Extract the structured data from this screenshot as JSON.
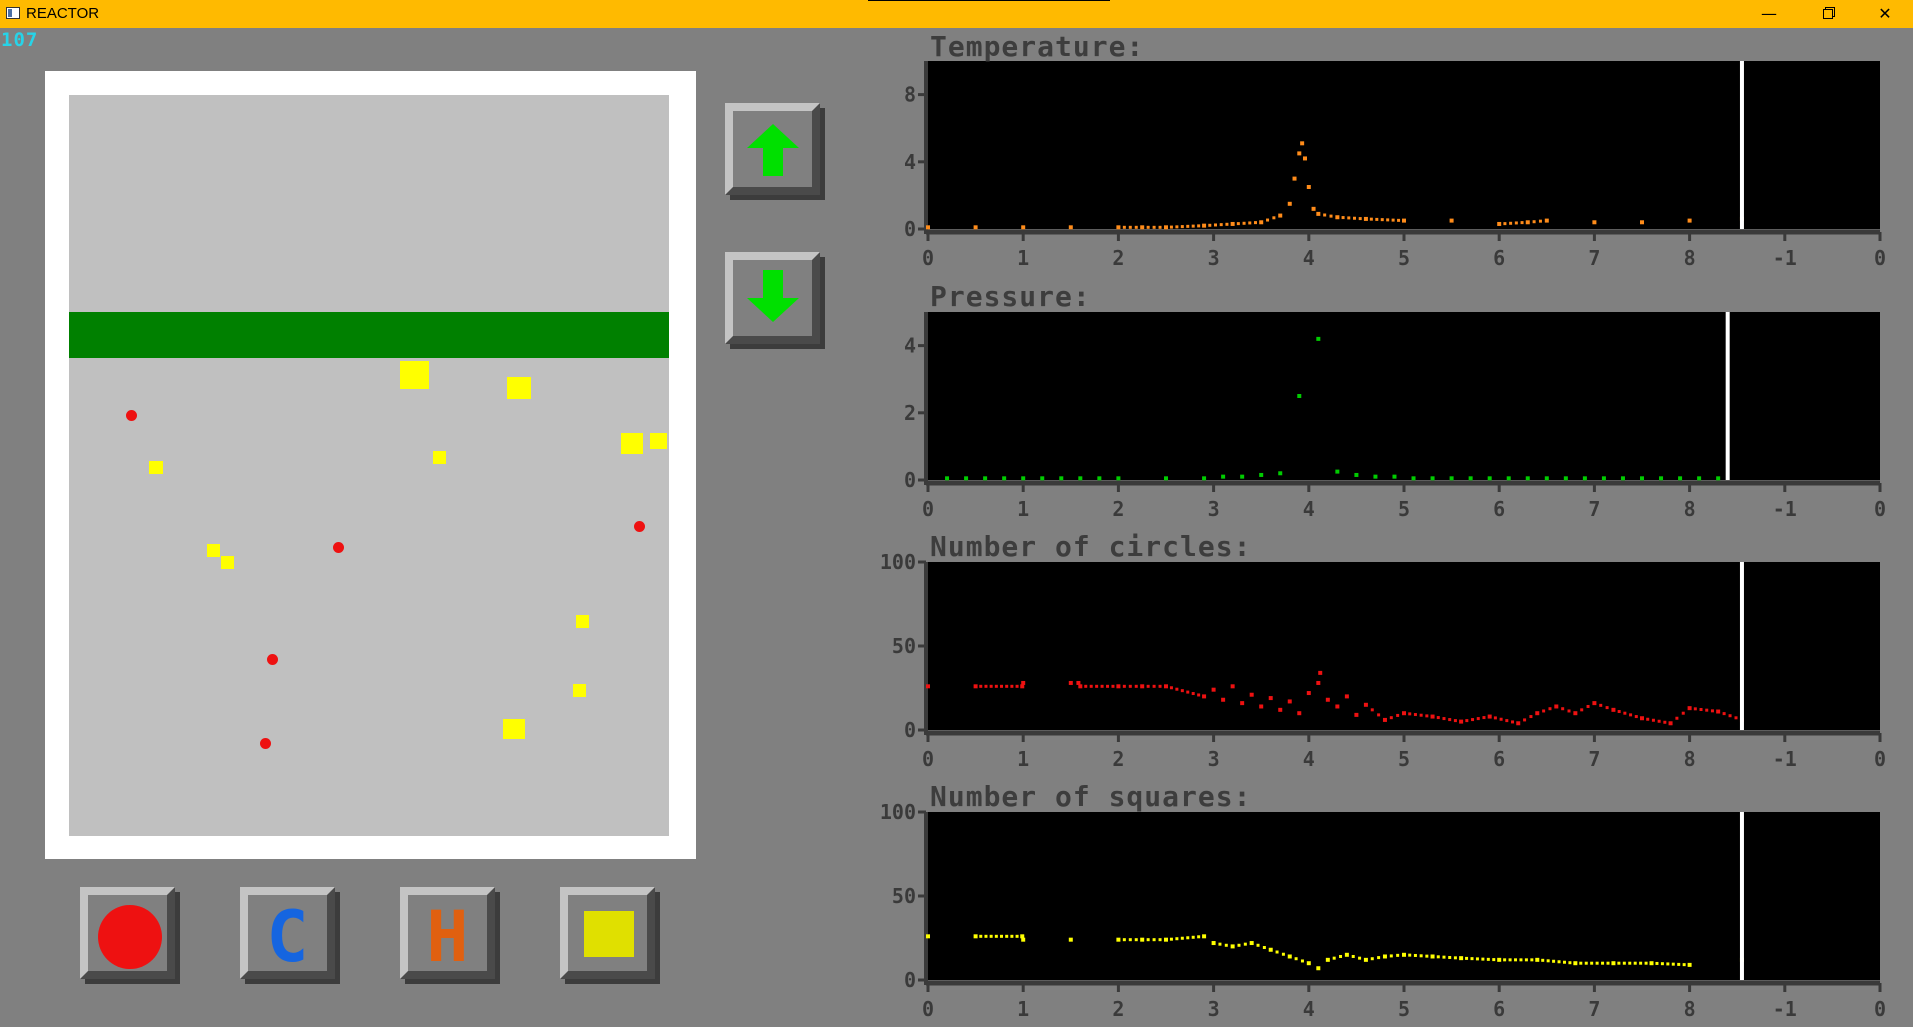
{
  "window": {
    "title": "REACTOR",
    "controls": {
      "minimize": "—",
      "maximize": "",
      "close": "✕"
    }
  },
  "counter": "107",
  "reactor": {
    "circles_color": "#EE1111",
    "squares_color": "#FFFF00",
    "piston_color": "#008000"
  },
  "controls": {
    "up_icon": "arrow-up-icon",
    "down_icon": "arrow-down-icon",
    "arrow_color": "#00E000"
  },
  "tools": [
    {
      "name": "circle-tool",
      "icon": "red-circle-icon",
      "color": "#EE1111"
    },
    {
      "name": "cool-tool",
      "label": "C",
      "color": "#1565E0"
    },
    {
      "name": "heat-tool",
      "label": "H",
      "color": "#E06010"
    },
    {
      "name": "square-tool",
      "icon": "yellow-square-icon",
      "color": "#E0E000"
    }
  ],
  "chart_data": [
    {
      "type": "scatter",
      "title": "Temperature:",
      "color": "#FF8C1A",
      "xticks": [
        "0",
        "1",
        "2",
        "3",
        "4",
        "5",
        "6",
        "7",
        "8",
        "-1",
        "0"
      ],
      "yticks": [
        "0",
        "4",
        "8"
      ],
      "ylim": [
        0,
        10
      ],
      "x": [
        0.0,
        0.5,
        1.0,
        1.5,
        2.0,
        2.25,
        2.5,
        2.9,
        3.2,
        3.5,
        3.7,
        3.8,
        3.85,
        3.9,
        3.93,
        3.96,
        4.0,
        4.05,
        4.1,
        4.3,
        4.6,
        5.0,
        5.5,
        6.0,
        6.3,
        6.5,
        7.0,
        7.5,
        8.0,
        8.55
      ],
      "y": [
        0.1,
        0.1,
        0.1,
        0.1,
        0.1,
        0.1,
        0.1,
        0.2,
        0.3,
        0.4,
        0.8,
        1.5,
        3.0,
        4.5,
        5.1,
        4.2,
        2.5,
        1.2,
        0.9,
        0.7,
        0.6,
        0.5,
        0.5,
        0.3,
        0.4,
        0.5,
        0.4,
        0.4,
        0.5,
        0.6
      ],
      "cursor_x": 8.55
    },
    {
      "type": "scatter",
      "title": "Pressure:",
      "color": "#00CC00",
      "xticks": [
        "0",
        "1",
        "2",
        "3",
        "4",
        "5",
        "6",
        "7",
        "8",
        "-1",
        "0"
      ],
      "yticks": [
        "0",
        "2",
        "4"
      ],
      "ylim": [
        0,
        5
      ],
      "x": [
        0.2,
        0.4,
        0.6,
        0.8,
        1.0,
        1.2,
        1.4,
        1.6,
        1.8,
        2.0,
        2.5,
        2.9,
        3.1,
        3.3,
        3.5,
        3.7,
        3.9,
        4.1,
        4.3,
        4.5,
        4.7,
        4.9,
        5.1,
        5.3,
        5.5,
        5.7,
        5.9,
        6.1,
        6.3,
        6.5,
        6.7,
        6.9,
        7.1,
        7.3,
        7.5,
        7.7,
        7.9,
        8.1,
        8.3
      ],
      "y": [
        0.05,
        0.05,
        0.05,
        0.05,
        0.05,
        0.05,
        0.05,
        0.05,
        0.05,
        0.05,
        0.05,
        0.05,
        0.1,
        0.1,
        0.15,
        0.2,
        2.5,
        4.2,
        0.25,
        0.15,
        0.1,
        0.1,
        0.05,
        0.05,
        0.05,
        0.05,
        0.05,
        0.05,
        0.05,
        0.05,
        0.05,
        0.05,
        0.05,
        0.05,
        0.05,
        0.05,
        0.05,
        0.05,
        0.05
      ],
      "cursor_x": 8.4
    },
    {
      "type": "scatter",
      "title": "Number of circles:",
      "color": "#EE1111",
      "xticks": [
        "0",
        "1",
        "2",
        "3",
        "4",
        "5",
        "6",
        "7",
        "8",
        "-1",
        "0"
      ],
      "yticks": [
        "0",
        "50",
        "100"
      ],
      "ylim": [
        0,
        100
      ],
      "x": [
        0.0,
        0.5,
        0.99,
        1.0,
        1.5,
        1.58,
        1.6,
        2.0,
        2.25,
        2.5,
        2.9,
        3.0,
        3.1,
        3.2,
        3.3,
        3.4,
        3.5,
        3.6,
        3.7,
        3.8,
        3.9,
        4.0,
        4.1,
        4.12,
        4.2,
        4.3,
        4.4,
        4.5,
        4.6,
        4.8,
        5.0,
        5.3,
        5.6,
        5.9,
        6.2,
        6.4,
        6.6,
        6.8,
        7.0,
        7.2,
        7.5,
        7.8,
        8.0,
        8.3,
        8.55
      ],
      "y": [
        26,
        26,
        26,
        28,
        28,
        28,
        26,
        26,
        26,
        26,
        20,
        24,
        18,
        26,
        16,
        21,
        14,
        19,
        12,
        17,
        10,
        22,
        28,
        34,
        18,
        14,
        20,
        9,
        15,
        6,
        10,
        8,
        5,
        8,
        4,
        10,
        14,
        10,
        16,
        12,
        7,
        4,
        13,
        11,
        6
      ],
      "cursor_x": 8.55
    },
    {
      "type": "scatter",
      "title": "Number of squares:",
      "color": "#FFFF00",
      "xticks": [
        "0",
        "1",
        "2",
        "3",
        "4",
        "5",
        "6",
        "7",
        "8",
        "-1",
        "0"
      ],
      "yticks": [
        "0",
        "50",
        "100"
      ],
      "ylim": [
        0,
        100
      ],
      "x": [
        0.0,
        0.5,
        0.99,
        1.0,
        1.5,
        2.0,
        2.25,
        2.5,
        2.9,
        3.0,
        3.2,
        3.4,
        3.6,
        3.8,
        4.0,
        4.1,
        4.2,
        4.4,
        4.6,
        4.8,
        5.0,
        5.3,
        5.6,
        6.0,
        6.4,
        6.8,
        7.2,
        7.6,
        8.0,
        8.55
      ],
      "y": [
        26,
        26,
        26,
        24,
        24,
        24,
        24,
        24,
        26,
        22,
        20,
        22,
        18,
        14,
        10,
        7,
        12,
        15,
        12,
        14,
        15,
        14,
        13,
        12,
        12,
        10,
        10,
        10,
        9,
        12
      ],
      "cursor_x": 8.55
    }
  ]
}
